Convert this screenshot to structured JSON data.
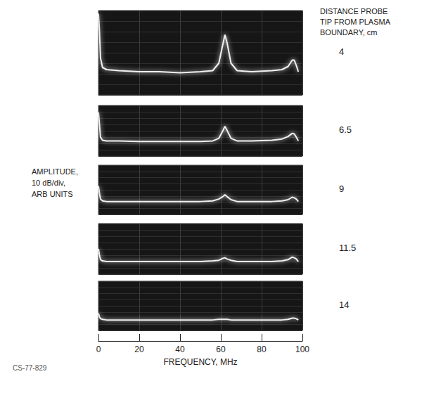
{
  "chart_data": [
    {
      "type": "line",
      "title": "4",
      "color": "#f0f0f0",
      "x": [
        0,
        0.5,
        1,
        2,
        4,
        10,
        20,
        30,
        40,
        50,
        56,
        59,
        61,
        62,
        63,
        65,
        68,
        75,
        85,
        90,
        93,
        95,
        96,
        97,
        98
      ],
      "values": [
        77,
        60,
        35,
        26,
        24,
        23,
        22,
        22,
        21,
        22,
        23,
        30,
        48,
        57,
        50,
        30,
        23,
        22,
        23,
        24,
        27,
        33,
        33,
        28,
        22
      ],
      "xlim": [
        0,
        100
      ],
      "xticks": [
        0,
        20,
        40,
        60,
        80,
        100
      ],
      "ylim": [
        0,
        80
      ],
      "yticks": [
        0,
        10,
        20,
        30,
        40,
        50,
        60,
        70,
        80
      ],
      "grid": true,
      "tick_labels": false
    },
    {
      "type": "line",
      "title": "6.5",
      "color": "#f0f0f0",
      "x": [
        0,
        0.5,
        1,
        2,
        4,
        10,
        20,
        30,
        40,
        50,
        56,
        59,
        61,
        62,
        63,
        65,
        68,
        75,
        85,
        90,
        93,
        95,
        96,
        97,
        98
      ],
      "values": [
        69,
        50,
        30,
        25,
        24,
        24,
        23,
        23,
        23,
        23,
        24,
        28,
        40,
        47,
        41,
        28,
        24,
        24,
        25,
        27,
        31,
        36,
        35,
        30,
        24
      ],
      "xlim": [
        0,
        100
      ],
      "xticks": [
        0,
        20,
        40,
        60,
        80,
        100
      ],
      "ylim": [
        0,
        80
      ],
      "yticks": [
        0,
        10,
        20,
        30,
        40,
        50,
        60,
        70,
        80
      ],
      "grid": true,
      "tick_labels": false
    },
    {
      "type": "line",
      "title": "9",
      "color": "#f0f0f0",
      "x": [
        0,
        0.5,
        1,
        2,
        4,
        10,
        20,
        30,
        40,
        50,
        56,
        59,
        61,
        62,
        63,
        65,
        68,
        75,
        85,
        90,
        93,
        95,
        96,
        97,
        98
      ],
      "values": [
        46,
        34,
        25,
        22,
        21,
        21,
        21,
        21,
        21,
        21,
        22,
        25,
        29,
        32,
        29,
        24,
        21,
        21,
        21,
        22,
        24,
        28,
        27,
        25,
        21
      ],
      "xlim": [
        0,
        100
      ],
      "xticks": [
        0,
        20,
        40,
        60,
        80,
        100
      ],
      "ylim": [
        0,
        80
      ],
      "yticks": [
        0,
        10,
        20,
        30,
        40,
        50,
        60,
        70,
        80
      ],
      "grid": true,
      "tick_labels": false
    },
    {
      "type": "line",
      "title": "11.5",
      "color": "#f0f0f0",
      "x": [
        0,
        0.5,
        1,
        2,
        4,
        10,
        20,
        30,
        40,
        50,
        56,
        59,
        61,
        62,
        63,
        65,
        68,
        75,
        85,
        90,
        93,
        95,
        96,
        97,
        98
      ],
      "values": [
        40,
        30,
        23,
        21,
        20,
        20,
        20,
        20,
        20,
        20,
        21,
        22,
        25,
        26,
        24,
        22,
        20,
        20,
        20,
        21,
        23,
        27,
        26,
        24,
        20
      ],
      "xlim": [
        0,
        100
      ],
      "xticks": [
        0,
        20,
        40,
        60,
        80,
        100
      ],
      "ylim": [
        0,
        80
      ],
      "yticks": [
        0,
        10,
        20,
        30,
        40,
        50,
        60,
        70,
        80
      ],
      "grid": true,
      "tick_labels": false
    },
    {
      "type": "line",
      "title": "14",
      "color": "#f0f0f0",
      "xlabel": "FREQUENCY, MHz",
      "x": [
        0,
        0.5,
        1,
        2,
        4,
        10,
        20,
        30,
        40,
        50,
        56,
        59,
        61,
        62,
        63,
        65,
        68,
        75,
        85,
        90,
        93,
        95,
        96,
        97,
        98
      ],
      "values": [
        28,
        22,
        19,
        18,
        17,
        17,
        17,
        17,
        17,
        17,
        17,
        18,
        18,
        18,
        18,
        17,
        17,
        17,
        17,
        17,
        18,
        20,
        20,
        19,
        17
      ],
      "xlim": [
        0,
        100
      ],
      "xticks": [
        0,
        20,
        40,
        60,
        80,
        100
      ],
      "ylim": [
        0,
        80
      ],
      "yticks": [
        0,
        10,
        20,
        30,
        40,
        50,
        60,
        70,
        80
      ],
      "grid": true,
      "tick_labels": "x"
    }
  ],
  "figure": {
    "ylabel": "AMPLITUDE, 10 dB/div, ARB UNITS",
    "panel_label_header": "DISTANCE PROBE TIP FROM PLASMA BOUNDARY, cm",
    "figure_id": "CS-77-829"
  }
}
